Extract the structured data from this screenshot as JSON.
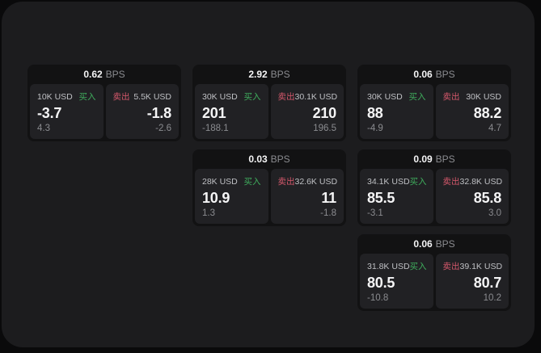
{
  "theme": {
    "pageBg": "#0a0a0b",
    "panelBg": "#1c1c1e",
    "cardBg": "#121213",
    "tileBg": "#212124",
    "textBright": "#f5f5f6",
    "textLabel": "#bfc0c4",
    "textDim": "#8b8c90",
    "buyColor": "#3fae5d",
    "sellColor": "#d4586b"
  },
  "labels": {
    "buy": "买入",
    "sell": "卖出",
    "bps": "BPS"
  },
  "cards": [
    {
      "bps": "0.62",
      "buy": {
        "amount": "10K USD",
        "price": "-3.7",
        "change": "4.3"
      },
      "sell": {
        "amount": "5.5K USD",
        "price": "-1.8",
        "change": "-2.6"
      }
    },
    {
      "bps": "2.92",
      "buy": {
        "amount": "30K USD",
        "price": "201",
        "change": "-188.1"
      },
      "sell": {
        "amount": "30.1K USD",
        "price": "210",
        "change": "196.5"
      }
    },
    {
      "bps": "0.06",
      "buy": {
        "amount": "30K USD",
        "price": "88",
        "change": "-4.9"
      },
      "sell": {
        "amount": "30K USD",
        "price": "88.2",
        "change": "4.7"
      }
    },
    {
      "bps": "0.03",
      "buy": {
        "amount": "28K USD",
        "price": "10.9",
        "change": "1.3"
      },
      "sell": {
        "amount": "32.6K USD",
        "price": "11",
        "change": "-1.8"
      }
    },
    {
      "bps": "0.09",
      "buy": {
        "amount": "34.1K USD",
        "price": "85.5",
        "change": "-3.1"
      },
      "sell": {
        "amount": "32.8K USD",
        "price": "85.8",
        "change": "3.0"
      }
    },
    {
      "bps": "0.06",
      "buy": {
        "amount": "31.8K USD",
        "price": "80.5",
        "change": "-10.8"
      },
      "sell": {
        "amount": "39.1K USD",
        "price": "80.7",
        "change": "10.2"
      }
    }
  ]
}
